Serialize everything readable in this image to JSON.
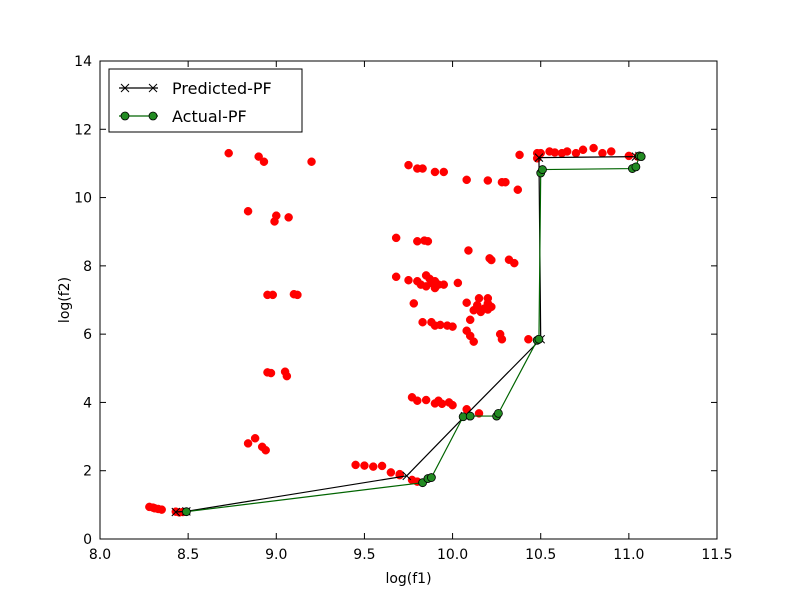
{
  "chart_data": {
    "type": "scatter",
    "xlabel": "log(f1)",
    "ylabel": "log(f2)",
    "xlim": [
      8.0,
      11.5
    ],
    "ylim": [
      0,
      14
    ],
    "xticks": [
      "8.0",
      "8.5",
      "9.0",
      "9.5",
      "10.0",
      "10.5",
      "11.0",
      "11.5"
    ],
    "yticks": [
      "0",
      "2",
      "4",
      "6",
      "8",
      "10",
      "12",
      "14"
    ],
    "grid": false,
    "legend_position": "top-left",
    "scatter": {
      "color": "#ff0000",
      "points": [
        [
          8.28,
          0.94
        ],
        [
          8.3,
          0.92
        ],
        [
          8.31,
          0.9
        ],
        [
          8.33,
          0.88
        ],
        [
          8.35,
          0.86
        ],
        [
          8.43,
          0.8
        ],
        [
          8.45,
          0.78
        ],
        [
          8.47,
          0.79
        ],
        [
          8.73,
          11.3
        ],
        [
          8.9,
          11.2
        ],
        [
          8.93,
          11.05
        ],
        [
          9.2,
          11.05
        ],
        [
          8.84,
          9.6
        ],
        [
          8.99,
          9.3
        ],
        [
          9.0,
          9.47
        ],
        [
          9.07,
          9.42
        ],
        [
          8.95,
          7.15
        ],
        [
          8.98,
          7.15
        ],
        [
          9.1,
          7.17
        ],
        [
          9.12,
          7.15
        ],
        [
          8.95,
          4.88
        ],
        [
          8.97,
          4.86
        ],
        [
          9.05,
          4.9
        ],
        [
          9.06,
          4.77
        ],
        [
          8.84,
          2.8
        ],
        [
          8.88,
          2.95
        ],
        [
          8.92,
          2.7
        ],
        [
          8.94,
          2.6
        ],
        [
          9.45,
          2.17
        ],
        [
          9.5,
          2.15
        ],
        [
          9.55,
          2.12
        ],
        [
          9.6,
          2.14
        ],
        [
          9.65,
          1.95
        ],
        [
          9.7,
          1.9
        ],
        [
          9.75,
          10.95
        ],
        [
          9.8,
          10.85
        ],
        [
          9.83,
          10.85
        ],
        [
          9.9,
          10.75
        ],
        [
          9.95,
          10.75
        ],
        [
          10.08,
          10.52
        ],
        [
          10.2,
          10.5
        ],
        [
          10.28,
          10.45
        ],
        [
          10.3,
          10.45
        ],
        [
          10.37,
          10.23
        ],
        [
          9.68,
          8.82
        ],
        [
          9.8,
          8.72
        ],
        [
          9.84,
          8.74
        ],
        [
          9.86,
          8.72
        ],
        [
          10.09,
          8.45
        ],
        [
          10.21,
          8.22
        ],
        [
          10.22,
          8.17
        ],
        [
          10.32,
          8.18
        ],
        [
          10.35,
          8.08
        ],
        [
          9.68,
          7.68
        ],
        [
          9.75,
          7.58
        ],
        [
          9.8,
          7.55
        ],
        [
          9.82,
          7.45
        ],
        [
          9.85,
          7.4
        ],
        [
          9.87,
          7.62
        ],
        [
          9.88,
          7.5
        ],
        [
          9.9,
          7.55
        ],
        [
          9.92,
          7.45
        ],
        [
          9.85,
          7.72
        ],
        [
          9.9,
          7.35
        ],
        [
          9.95,
          7.45
        ],
        [
          10.03,
          7.5
        ],
        [
          10.08,
          6.92
        ],
        [
          10.12,
          6.7
        ],
        [
          10.14,
          6.85
        ],
        [
          10.15,
          7.05
        ],
        [
          10.16,
          6.65
        ],
        [
          10.18,
          6.75
        ],
        [
          10.2,
          6.9
        ],
        [
          10.2,
          6.72
        ],
        [
          10.22,
          6.8
        ],
        [
          10.2,
          7.05
        ],
        [
          9.78,
          6.9
        ],
        [
          9.83,
          6.35
        ],
        [
          9.88,
          6.35
        ],
        [
          9.9,
          6.25
        ],
        [
          9.93,
          6.27
        ],
        [
          9.97,
          6.25
        ],
        [
          10.0,
          6.22
        ],
        [
          10.08,
          6.1
        ],
        [
          10.1,
          5.95
        ],
        [
          10.12,
          5.78
        ],
        [
          10.1,
          6.42
        ],
        [
          10.27,
          6.0
        ],
        [
          10.28,
          5.85
        ],
        [
          10.43,
          5.85
        ],
        [
          9.77,
          4.15
        ],
        [
          9.8,
          4.05
        ],
        [
          9.85,
          4.07
        ],
        [
          9.9,
          3.97
        ],
        [
          9.92,
          4.05
        ],
        [
          9.94,
          3.96
        ],
        [
          9.98,
          4.0
        ],
        [
          10.0,
          3.92
        ],
        [
          10.08,
          3.8
        ],
        [
          10.15,
          3.68
        ],
        [
          9.7,
          1.87
        ],
        [
          9.77,
          1.73
        ],
        [
          9.8,
          1.68
        ],
        [
          10.38,
          11.25
        ],
        [
          10.48,
          11.3
        ],
        [
          10.48,
          11.15
        ],
        [
          10.5,
          11.3
        ],
        [
          10.55,
          11.35
        ],
        [
          10.58,
          11.32
        ],
        [
          10.62,
          11.3
        ],
        [
          10.65,
          11.35
        ],
        [
          10.7,
          11.3
        ],
        [
          10.74,
          11.4
        ],
        [
          10.8,
          11.45
        ],
        [
          10.85,
          11.3
        ],
        [
          10.9,
          11.35
        ],
        [
          11.0,
          11.22
        ],
        [
          11.05,
          11.2
        ]
      ]
    },
    "series": [
      {
        "name": "Predicted-PF",
        "color": "#000000",
        "marker": "x",
        "points": [
          [
            8.43,
            0.79
          ],
          [
            8.49,
            0.81
          ],
          [
            9.74,
            1.85
          ],
          [
            10.07,
            3.6
          ],
          [
            10.5,
            5.85
          ],
          [
            10.49,
            11.17
          ],
          [
            11.04,
            11.2
          ],
          [
            11.06,
            11.22
          ]
        ]
      },
      {
        "name": "Actual-PF",
        "color": "#006400",
        "marker_fill": "#228b22",
        "marker": "o",
        "points": [
          [
            8.49,
            0.8
          ],
          [
            9.83,
            1.65
          ],
          [
            9.86,
            1.77
          ],
          [
            9.88,
            1.8
          ],
          [
            10.06,
            3.58
          ],
          [
            10.1,
            3.6
          ],
          [
            10.25,
            3.6
          ],
          [
            10.26,
            3.68
          ],
          [
            10.48,
            5.82
          ],
          [
            10.49,
            5.85
          ],
          [
            10.5,
            10.72
          ],
          [
            10.51,
            10.82
          ],
          [
            11.02,
            10.85
          ],
          [
            11.04,
            10.9
          ],
          [
            11.06,
            11.22
          ],
          [
            11.07,
            11.2
          ]
        ]
      }
    ]
  }
}
